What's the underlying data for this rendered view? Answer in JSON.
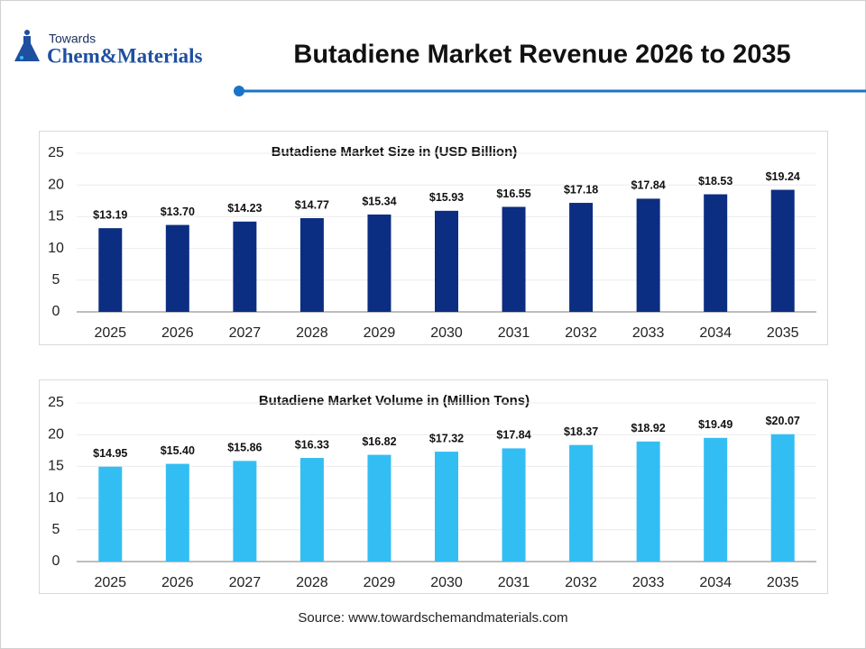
{
  "header": {
    "logo_small": "Towards",
    "logo_main": "Chem&Materials",
    "title": "Butadiene Market Revenue 2026 to 2035"
  },
  "chart_data": [
    {
      "type": "bar",
      "title": "Butadiene Market Size in (USD Billion)",
      "categories": [
        "2025",
        "2026",
        "2027",
        "2028",
        "2029",
        "2030",
        "2031",
        "2032",
        "2033",
        "2034",
        "2035"
      ],
      "values": [
        13.19,
        13.7,
        14.23,
        14.77,
        15.34,
        15.93,
        16.55,
        17.18,
        17.84,
        18.53,
        19.24
      ],
      "value_labels": [
        "$13.19",
        "$13.70",
        "$14.23",
        "$14.77",
        "$15.34",
        "$15.93",
        "$16.55",
        "$17.18",
        "$17.84",
        "$18.53",
        "$19.24"
      ],
      "color": "#0b2e82",
      "ylim": [
        0,
        25
      ],
      "yticks": [
        0,
        5,
        10,
        15,
        20,
        25
      ],
      "grid": true
    },
    {
      "type": "bar",
      "title": "Butadiene Market Volume in (Million Tons)",
      "categories": [
        "2025",
        "2026",
        "2027",
        "2028",
        "2029",
        "2030",
        "2031",
        "2032",
        "2033",
        "2034",
        "2035"
      ],
      "values": [
        14.95,
        15.4,
        15.86,
        16.33,
        16.82,
        17.32,
        17.84,
        18.37,
        18.92,
        19.49,
        20.07
      ],
      "value_labels": [
        "$14.95",
        "$15.40",
        "$15.86",
        "$16.33",
        "$16.82",
        "$17.32",
        "$17.84",
        "$18.37",
        "$18.92",
        "$19.49",
        "$20.07"
      ],
      "color": "#33bef3",
      "ylim": [
        0,
        25
      ],
      "yticks": [
        0,
        5,
        10,
        15,
        20,
        25
      ],
      "grid": true
    }
  ],
  "source": "Source: www.towardschemandmaterials.com"
}
